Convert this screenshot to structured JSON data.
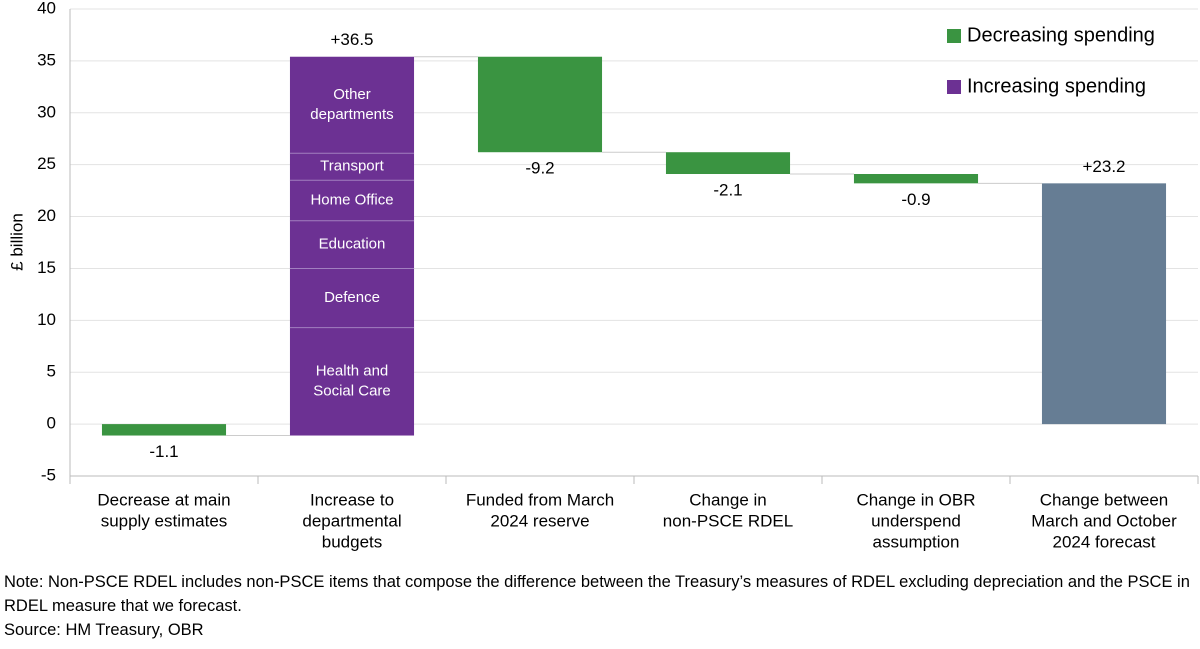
{
  "chart_data": {
    "type": "waterfall",
    "y_label": "£ billion",
    "categories": [
      [
        "Decrease at main",
        "supply estimates"
      ],
      [
        "Increase to",
        "departmental",
        "budgets"
      ],
      [
        "Funded from March",
        "2024 reserve"
      ],
      [
        "Change in",
        "non-PSCE RDEL"
      ],
      [
        "Change in OBR",
        "underspend",
        "assumption"
      ],
      [
        "Change between",
        "March and October",
        "2024 forecast"
      ]
    ],
    "values": [
      -1.1,
      36.5,
      -9.2,
      -2.1,
      -0.9,
      23.2
    ],
    "value_labels": [
      "-1.1",
      "+36.5",
      "-9.2",
      "-2.1",
      "-0.9",
      "+23.2"
    ],
    "measures": [
      "relative",
      "relative",
      "relative",
      "relative",
      "relative",
      "total"
    ],
    "segments": [
      null,
      [
        {
          "name": [
            "Health and",
            "Social Care"
          ],
          "value": 10.4
        },
        {
          "name": [
            "Defence"
          ],
          "value": 5.7
        },
        {
          "name": [
            "Education"
          ],
          "value": 4.6
        },
        {
          "name": [
            "Home Office"
          ],
          "value": 3.9
        },
        {
          "name": [
            "Transport"
          ],
          "value": 2.6
        },
        {
          "name": [
            "Other",
            "departments"
          ],
          "value": 9.3
        }
      ],
      null,
      null,
      null,
      null
    ],
    "legend": [
      {
        "name": "Decreasing spending",
        "color": "#3a9441"
      },
      {
        "name": "Increasing spending",
        "color": "#6c3193"
      }
    ],
    "total_color": "#667d94",
    "ylim": [
      -5,
      40
    ],
    "yticks": [
      -5,
      0,
      5,
      10,
      15,
      20,
      25,
      30,
      35,
      40
    ],
    "grid": true
  },
  "note": "Note: Non-PSCE RDEL includes non-PSCE items that compose the difference between the Treasury’s measures of RDEL excluding depreciation and the PSCE in RDEL measure that we forecast.",
  "source": "Source: HM Treasury, OBR"
}
